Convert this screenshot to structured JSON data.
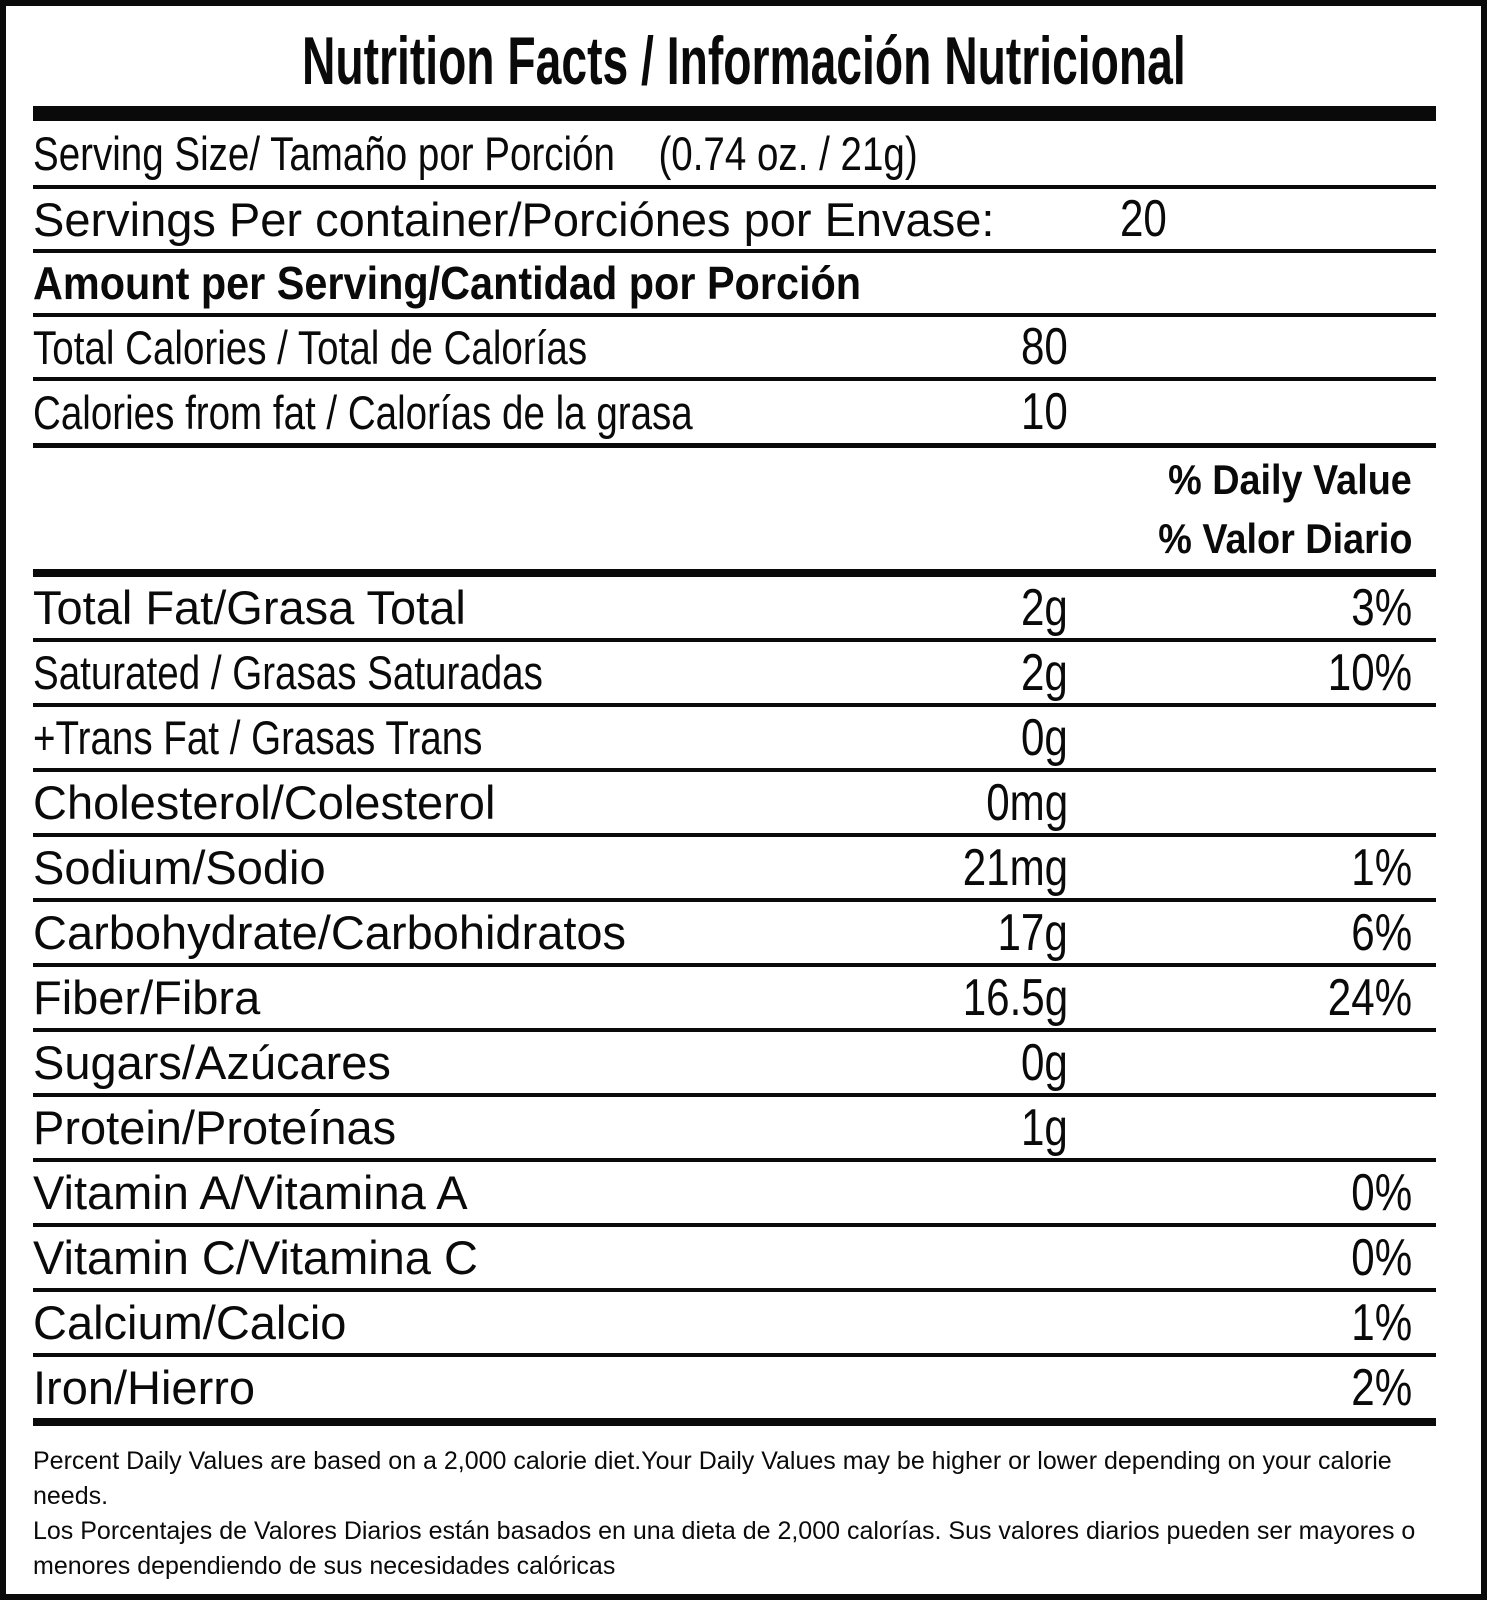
{
  "colors": {
    "ink": "#0a0a0a",
    "background": "#ffffff"
  },
  "label": {
    "title": "Nutrition Facts / Información Nutricional",
    "serving_size": {
      "label": "Serving Size/ Tamaño por Porción",
      "value": "(0.74 oz. / 21g)"
    },
    "servings_per_container": {
      "label": "Servings Per container/Porciónes por Envase:",
      "value": "20"
    },
    "amount_header": "Amount per Serving/Cantidad por Porción",
    "calories": [
      {
        "label": "Total Calories / Total de Calorías",
        "value": "80"
      },
      {
        "label": "Calories from fat / Calorías de la grasa",
        "value": "10"
      }
    ],
    "daily_value_header": {
      "line1": "% Daily Value",
      "line2": "% Valor Diario"
    },
    "nutrients": [
      {
        "label": "Total Fat/Grasa Total",
        "amount": "2g",
        "dv": "3%",
        "condensed": false
      },
      {
        "label": "Saturated / Grasas Saturadas",
        "amount": "2g",
        "dv": "10%",
        "condensed": true
      },
      {
        "label": "+Trans Fat / Grasas Trans",
        "amount": "0g",
        "dv": "",
        "condensed": true
      },
      {
        "label": "Cholesterol/Colesterol",
        "amount": "0mg",
        "dv": "",
        "condensed": false
      },
      {
        "label": "Sodium/Sodio",
        "amount": "21mg",
        "dv": "1%",
        "condensed": false
      },
      {
        "label": "Carbohydrate/Carbohidratos",
        "amount": "17g",
        "dv": "6%",
        "condensed": false
      },
      {
        "label": "Fiber/Fibra",
        "amount": "16.5g",
        "dv": "24%",
        "condensed": false
      },
      {
        "label": "Sugars/Azúcares",
        "amount": "0g",
        "dv": "",
        "condensed": false
      },
      {
        "label": "Protein/Proteínas",
        "amount": "1g",
        "dv": "",
        "condensed": false
      },
      {
        "label": "Vitamin A/Vitamina A",
        "amount": "",
        "dv": "0%",
        "condensed": false
      },
      {
        "label": "Vitamin C/Vitamina C",
        "amount": "",
        "dv": "0%",
        "condensed": false
      },
      {
        "label": "Calcium/Calcio",
        "amount": "",
        "dv": "1%",
        "condensed": false
      },
      {
        "label": "Iron/Hierro",
        "amount": "",
        "dv": "2%",
        "condensed": false
      }
    ],
    "footnotes": [
      "Percent Daily Values are based on a 2,000 calorie diet.Your Daily Values may be higher or lower depending on your calorie needs.",
      "Los Porcentajes de Valores Diarios están basados en una dieta de 2,000 calorías. Sus valores diarios pueden ser mayores o menores dependiendo de sus necesidades calóricas"
    ]
  }
}
